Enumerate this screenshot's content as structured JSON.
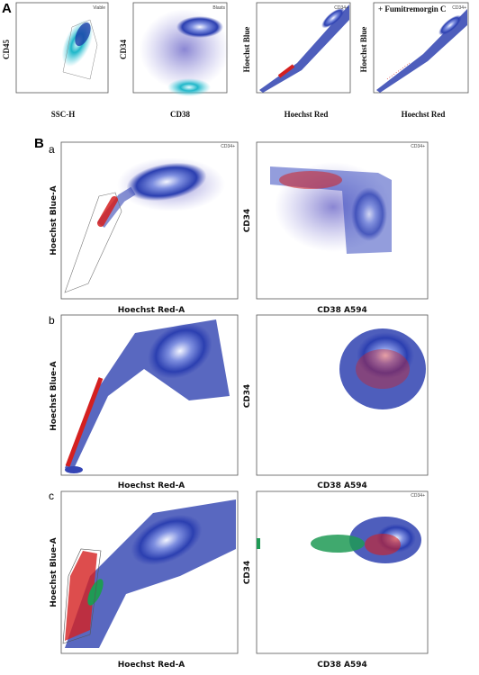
{
  "panel_a": {
    "label": "A",
    "plots": [
      {
        "y_label": "CD45",
        "x_label": "SSC-H",
        "gate": "Viable"
      },
      {
        "y_label": "CD34",
        "x_label": "CD38",
        "gate": "Blasts"
      },
      {
        "y_label": "Hoechst Blue",
        "x_label": "Hoechst Red",
        "gate": "CD34+"
      },
      {
        "y_label": "Hoechst Blue",
        "x_label": "Hoechst Red",
        "title": "+ Fumitremorgin C",
        "gate": "CD34+"
      }
    ]
  },
  "panel_b": {
    "label": "B",
    "rows": [
      {
        "label": "a",
        "left": {
          "y_label": "Hoechst Blue-A",
          "x_label": "Hoechst Red-A",
          "gate": "CD34+"
        },
        "right": {
          "y_label": "CD34",
          "x_label": "CD38 A594",
          "gate": "CD34+"
        }
      },
      {
        "label": "b",
        "left": {
          "y_label": "Hoechst Blue-A",
          "x_label": "Hoechst Red-A"
        },
        "right": {
          "y_label": "CD34",
          "x_label": "CD38 A594"
        }
      },
      {
        "label": "c",
        "left": {
          "y_label": "Hoechst Blue-A",
          "x_label": "Hoechst Red-A"
        },
        "right": {
          "y_label": "CD34",
          "x_label": "CD38 A594",
          "gate": "CD34+"
        }
      }
    ]
  }
}
